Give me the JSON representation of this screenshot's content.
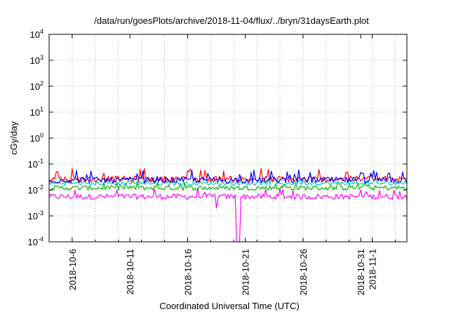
{
  "chart_data": {
    "type": "line",
    "title": "/data/run/goesPlots/archive/2018-11-04/flux/../bryn/31daysEarth.plot",
    "xlabel": "Coordinated Universal Time (UTC)",
    "ylabel": "cGy/day",
    "yscale": "log",
    "ylim": [
      0.0001,
      10000
    ],
    "xlim": [
      "2018-10-04T00:00",
      "2018-11-04T00:00"
    ],
    "grid": true,
    "x_ticks": [
      {
        "value": "2018-10-06",
        "label": "2018-10-6"
      },
      {
        "value": "2018-10-11",
        "label": "2018-10-11"
      },
      {
        "value": "2018-10-16",
        "label": "2018-10-16"
      },
      {
        "value": "2018-10-21",
        "label": "2018-10-21"
      },
      {
        "value": "2018-10-26",
        "label": "2018-10-26"
      },
      {
        "value": "2018-10-31",
        "label": "2018-10-31"
      },
      {
        "value": "2018-11-01",
        "label": "2018-11-1"
      }
    ],
    "x_grid_dates": [
      "2018-10-06",
      "2018-10-08",
      "2018-10-10",
      "2018-10-12",
      "2018-10-14",
      "2018-10-16",
      "2018-10-18",
      "2018-10-20",
      "2018-10-22",
      "2018-10-24",
      "2018-10-26",
      "2018-10-28",
      "2018-10-30",
      "2018-11-01",
      "2018-11-03"
    ],
    "y_ticks": [
      {
        "value": 0.0001,
        "base": "10",
        "exp": "-4"
      },
      {
        "value": 0.001,
        "base": "10",
        "exp": "-3"
      },
      {
        "value": 0.01,
        "base": "10",
        "exp": "-2"
      },
      {
        "value": 0.1,
        "base": "10",
        "exp": "-1"
      },
      {
        "value": 1,
        "base": "10",
        "exp": "0"
      },
      {
        "value": 10,
        "base": "10",
        "exp": "1"
      },
      {
        "value": 100,
        "base": "10",
        "exp": "2"
      },
      {
        "value": 1000,
        "base": "10",
        "exp": "3"
      },
      {
        "value": 10000,
        "base": "10",
        "exp": "4"
      }
    ],
    "series": [
      {
        "color": "#ff00ff",
        "typical": 0.0055,
        "low": 0.004,
        "high": 0.012,
        "dip": {
          "start": "2018-10-20T06:00",
          "end": "2018-10-20T12:00",
          "value": 0.0001
        },
        "extra_low": {
          "date": "2018-10-18T12:00",
          "value": 0.002
        }
      },
      {
        "color": "#00b000",
        "typical": 0.012,
        "low": 0.008,
        "high": 0.02
      },
      {
        "color": "#00c8c8",
        "typical": 0.018,
        "low": 0.013,
        "high": 0.028
      },
      {
        "color": "#ff0000",
        "typical": 0.026,
        "low": 0.02,
        "high": 0.07
      },
      {
        "color": "#0000ff",
        "typical": 0.024,
        "low": 0.018,
        "high": 0.06
      }
    ]
  }
}
